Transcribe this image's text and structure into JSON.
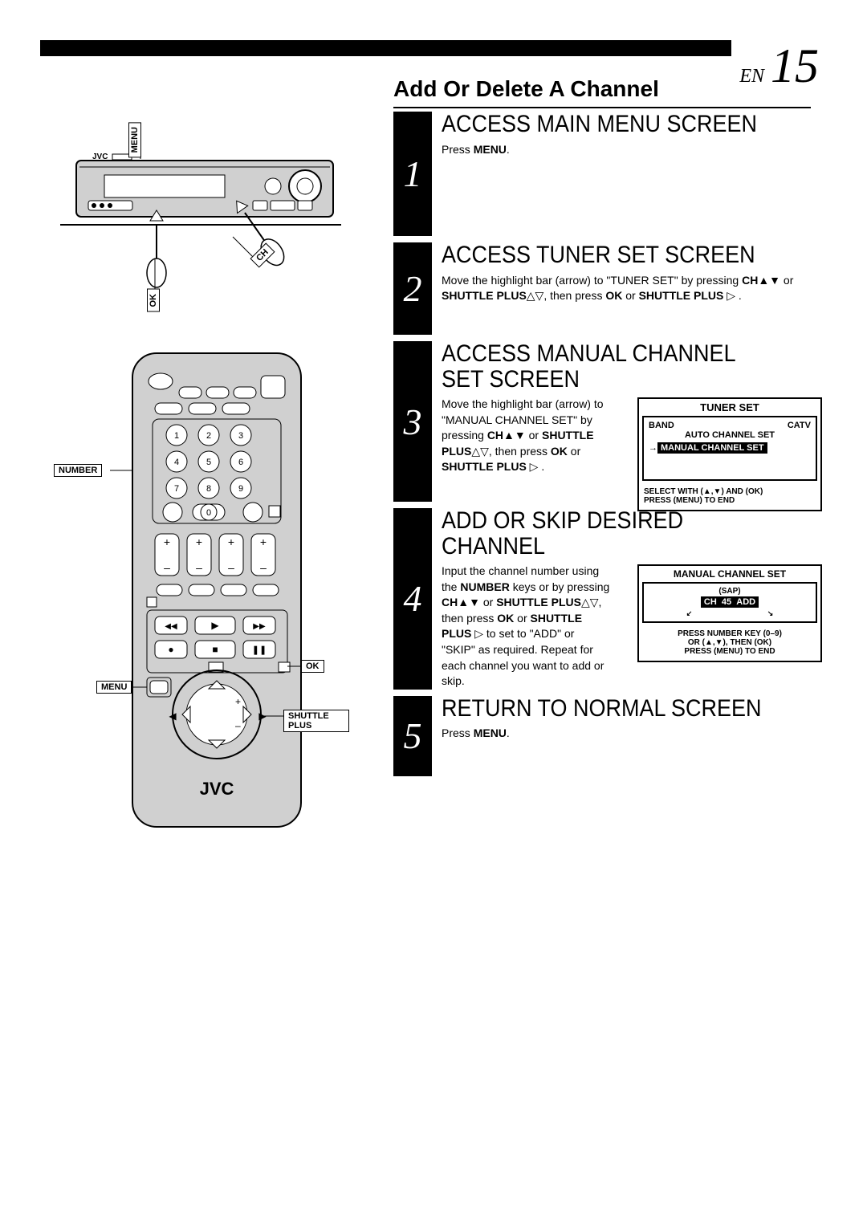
{
  "page": {
    "lang": "EN",
    "number": "15"
  },
  "title": "Add Or Delete A Channel",
  "steps": [
    {
      "num": "1",
      "heading": "ACCESS MAIN MENU SCREEN",
      "body_html": "Press <b>MENU</b>."
    },
    {
      "num": "2",
      "heading": "ACCESS TUNER SET SCREEN",
      "body_html": "Move the highlight bar (arrow) to \"TUNER SET\" by pressing <b>CH</b>▲▼ or <b>SHUTTLE PLUS</b>△▽, then press <b>OK</b> or <b>SHUTTLE PLUS</b> ▷ ."
    },
    {
      "num": "3",
      "heading": "ACCESS MANUAL CHANNEL SET SCREEN",
      "body_html": "Move the highlight bar (arrow) to \"MANUAL CHANNEL SET\" by pressing <b>CH</b>▲▼ or <b>SHUTTLE PLUS</b>△▽, then press <b>OK</b> or <b>SHUTTLE PLUS</b> ▷ ."
    },
    {
      "num": "4",
      "heading": "ADD OR SKIP DESIRED CHANNEL",
      "body_html": "Input the channel number using the <b>NUMBER</b> keys or by pressing <b>CH</b>▲▼ or <b>SHUTTLE PLUS</b>△▽, then press <b>OK</b> or <b>SHUTTLE PLUS</b> ▷ to set to \"ADD\" or \"SKIP\" as required. Repeat for each channel you want to add or skip."
    },
    {
      "num": "5",
      "heading": "RETURN TO NORMAL SCREEN",
      "body_html": "Press <b>MENU</b>."
    }
  ],
  "osd_tuner": {
    "title": "TUNER SET",
    "row1_left": "BAND",
    "row1_right": "CATV",
    "row2": "AUTO CHANNEL SET",
    "highlight": "MANUAL CHANNEL SET",
    "footer1": "SELECT WITH (▲,▼) AND (OK)",
    "footer2": "PRESS (MENU) TO END"
  },
  "osd_manual": {
    "title": "MANUAL CHANNEL SET",
    "sap": "(SAP)",
    "ch_label": "CH",
    "ch_val": "45",
    "ch_state": "ADD",
    "footer1": "PRESS NUMBER KEY (0–9)",
    "footer2": "OR (▲,▼), THEN (OK)",
    "footer3": "PRESS (MENU) TO END"
  },
  "callouts": {
    "vcr_menu": "MENU",
    "vcr_ok": "OK",
    "vcr_ch": "CH",
    "remote_number": "NUMBER",
    "remote_ok": "OK",
    "remote_menu": "MENU",
    "remote_shuttle": "SHUTTLE PLUS"
  },
  "brand": "JVC",
  "colors": {
    "black": "#000000",
    "white": "#ffffff",
    "grey": "#d0d0d0"
  }
}
